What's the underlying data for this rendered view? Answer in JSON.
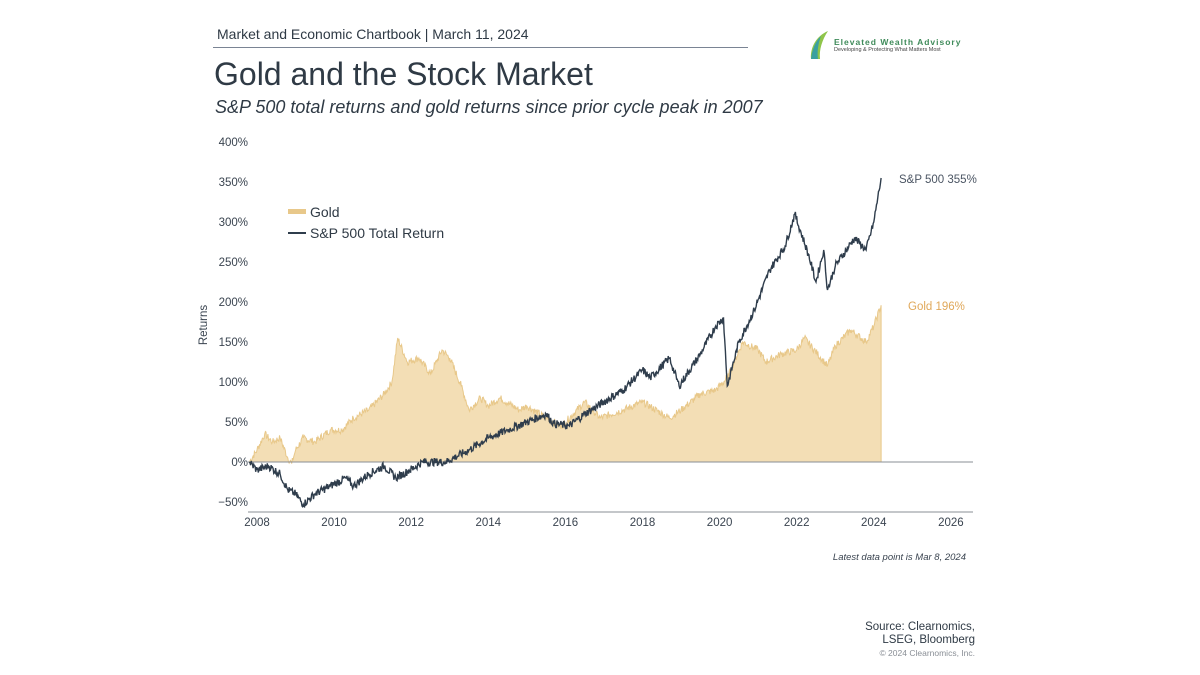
{
  "header": {
    "chartbook": "Market and Economic Chartbook | March 11, 2024",
    "title": "Gold and the Stock Market",
    "subtitle": "S&P 500 total returns and gold returns since prior cycle peak in 2007"
  },
  "logo": {
    "name": "Elevated Wealth Advisory",
    "tagline": "Developing & Protecting What Matters Most"
  },
  "footer": {
    "note": "Latest data point is Mar 8, 2024",
    "source_line1": "Source: Clearnomics,",
    "source_line2": "LSEG, Bloomberg",
    "copyright": "© 2024 Clearnomics, Inc."
  },
  "chart_data": {
    "type": "line",
    "ylabel": "Returns",
    "xlabel": "",
    "xlim": [
      2007.8,
      2026.6
    ],
    "ylim": [
      -50,
      400
    ],
    "x_ticks": [
      "2008",
      "2010",
      "2012",
      "2014",
      "2016",
      "2018",
      "2020",
      "2022",
      "2024",
      "2026"
    ],
    "y_ticks": [
      "−50%",
      "0%",
      "50%",
      "100%",
      "150%",
      "200%",
      "250%",
      "300%",
      "350%",
      "400%"
    ],
    "legend_position": "top-left",
    "grid": false,
    "series": [
      {
        "name": "Gold",
        "style": "area",
        "color": "#e8c88a",
        "end_label": "Gold 196%",
        "points": [
          [
            2007.8,
            0
          ],
          [
            2008.0,
            15
          ],
          [
            2008.2,
            35
          ],
          [
            2008.4,
            25
          ],
          [
            2008.6,
            30
          ],
          [
            2008.8,
            5
          ],
          [
            2008.9,
            -2
          ],
          [
            2009.0,
            15
          ],
          [
            2009.2,
            30
          ],
          [
            2009.5,
            25
          ],
          [
            2009.9,
            40
          ],
          [
            2010.2,
            40
          ],
          [
            2010.5,
            55
          ],
          [
            2010.9,
            65
          ],
          [
            2011.3,
            85
          ],
          [
            2011.5,
            100
          ],
          [
            2011.65,
            155
          ],
          [
            2011.9,
            125
          ],
          [
            2012.2,
            130
          ],
          [
            2012.5,
            110
          ],
          [
            2012.8,
            140
          ],
          [
            2013.0,
            130
          ],
          [
            2013.3,
            95
          ],
          [
            2013.5,
            65
          ],
          [
            2013.8,
            80
          ],
          [
            2014.0,
            70
          ],
          [
            2014.3,
            80
          ],
          [
            2014.8,
            65
          ],
          [
            2015.0,
            70
          ],
          [
            2015.5,
            55
          ],
          [
            2015.9,
            45
          ],
          [
            2016.5,
            75
          ],
          [
            2016.9,
            55
          ],
          [
            2017.5,
            65
          ],
          [
            2018.0,
            75
          ],
          [
            2018.7,
            55
          ],
          [
            2019.0,
            65
          ],
          [
            2019.5,
            85
          ],
          [
            2019.9,
            90
          ],
          [
            2020.2,
            105
          ],
          [
            2020.6,
            150
          ],
          [
            2021.0,
            140
          ],
          [
            2021.2,
            125
          ],
          [
            2021.6,
            135
          ],
          [
            2022.0,
            140
          ],
          [
            2022.2,
            155
          ],
          [
            2022.8,
            120
          ],
          [
            2023.0,
            145
          ],
          [
            2023.4,
            165
          ],
          [
            2023.8,
            150
          ],
          [
            2024.0,
            170
          ],
          [
            2024.19,
            196
          ]
        ]
      },
      {
        "name": "S&P 500 Total Return",
        "style": "line",
        "color": "#2f3d4c",
        "end_label": "S&P 500 355%",
        "points": [
          [
            2007.8,
            0
          ],
          [
            2008.0,
            -10
          ],
          [
            2008.3,
            -5
          ],
          [
            2008.6,
            -15
          ],
          [
            2008.8,
            -35
          ],
          [
            2009.0,
            -40
          ],
          [
            2009.2,
            -53
          ],
          [
            2009.5,
            -40
          ],
          [
            2009.9,
            -30
          ],
          [
            2010.3,
            -20
          ],
          [
            2010.5,
            -30
          ],
          [
            2010.9,
            -15
          ],
          [
            2011.3,
            -5
          ],
          [
            2011.6,
            -20
          ],
          [
            2011.9,
            -12
          ],
          [
            2012.3,
            0
          ],
          [
            2012.9,
            0
          ],
          [
            2013.5,
            15
          ],
          [
            2014.0,
            30
          ],
          [
            2014.5,
            40
          ],
          [
            2015.0,
            50
          ],
          [
            2015.5,
            60
          ],
          [
            2015.7,
            48
          ],
          [
            2016.1,
            45
          ],
          [
            2016.5,
            60
          ],
          [
            2017.0,
            75
          ],
          [
            2017.5,
            90
          ],
          [
            2018.0,
            115
          ],
          [
            2018.2,
            105
          ],
          [
            2018.7,
            130
          ],
          [
            2018.95,
            95
          ],
          [
            2019.5,
            135
          ],
          [
            2019.9,
            170
          ],
          [
            2020.1,
            180
          ],
          [
            2020.2,
            95
          ],
          [
            2020.5,
            150
          ],
          [
            2020.9,
            190
          ],
          [
            2021.3,
            240
          ],
          [
            2021.7,
            270
          ],
          [
            2021.95,
            310
          ],
          [
            2022.3,
            260
          ],
          [
            2022.5,
            225
          ],
          [
            2022.7,
            265
          ],
          [
            2022.8,
            215
          ],
          [
            2023.0,
            245
          ],
          [
            2023.5,
            280
          ],
          [
            2023.8,
            265
          ],
          [
            2024.0,
            300
          ],
          [
            2024.19,
            355
          ]
        ]
      }
    ]
  }
}
